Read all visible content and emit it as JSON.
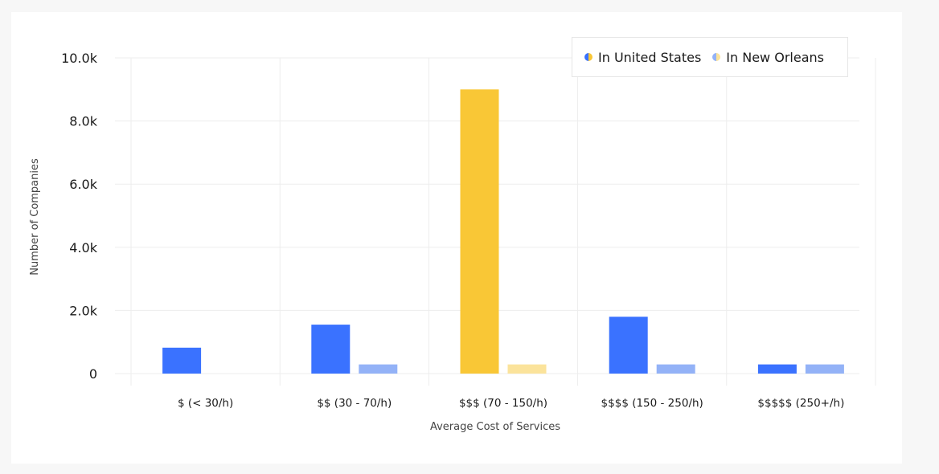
{
  "chart_data": {
    "type": "bar",
    "title": "",
    "xlabel": "Average Cost of Services",
    "ylabel": "Number of Companies",
    "ylim": [
      0,
      10000
    ],
    "y_ticks": [
      0,
      2000,
      4000,
      6000,
      8000,
      10000
    ],
    "y_tick_labels": [
      "0",
      "2.0k",
      "4.0k",
      "6.0k",
      "8.0k",
      "10.0k"
    ],
    "grid": true,
    "legend_position": "top-right",
    "categories": [
      "$ (< 30/h)",
      "$$ (30 - 70/h)",
      "$$$ (70 - 150/h)",
      "$$$$ (150 - 250/h)",
      "$$$$$ (250+/h)"
    ],
    "highlighted_category_index": 2,
    "series": [
      {
        "name": "In United States",
        "values": [
          820,
          1550,
          9000,
          1800,
          290
        ],
        "color": "#3a72ff",
        "highlight_color": "#f9c736"
      },
      {
        "name": "In New Orleans",
        "values": [
          0,
          290,
          290,
          290,
          290
        ],
        "color": "#93b2f7",
        "highlight_color": "#fbe39b"
      }
    ]
  },
  "legend": {
    "items": [
      {
        "label": "In United States",
        "left_color": "#3a72ff",
        "right_color": "#f9c736"
      },
      {
        "label": "In New Orleans",
        "left_color": "#93b2f7",
        "right_color": "#fbe39b"
      }
    ]
  }
}
